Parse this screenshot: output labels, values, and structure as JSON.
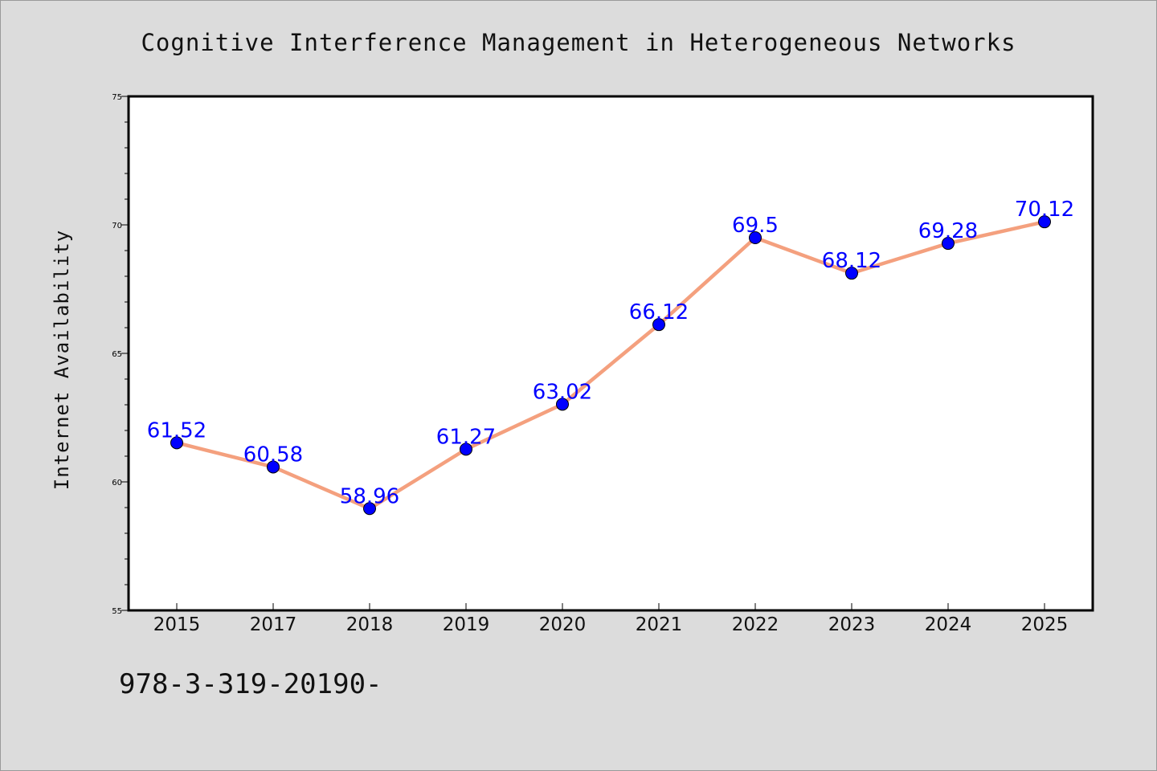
{
  "page": {
    "title": "Cognitive Interference Management in Heterogeneous Networks",
    "footer_text": "978-3-319-20190-"
  },
  "colors": {
    "background": "#dcdcdc",
    "plot_background": "#ffffff",
    "line": "#f4a07e",
    "marker": "#0000ff",
    "label": "#0000ff"
  },
  "chart_data": {
    "type": "line",
    "title": "Cognitive Interference Management in Heterogeneous Networks",
    "xlabel": "",
    "ylabel": "Internet Availability",
    "categories": [
      "2015",
      "2017",
      "2018",
      "2019",
      "2020",
      "2021",
      "2022",
      "2023",
      "2024",
      "2025"
    ],
    "series": [
      {
        "values": [
          61.52,
          60.58,
          58.96,
          61.27,
          63.02,
          66.12,
          69.5,
          68.12,
          69.28,
          70.12
        ],
        "labels": [
          "61.52",
          "60.58",
          "58.96",
          "61.27",
          "63.02",
          "66.12",
          "69.5",
          "68.12",
          "69.28",
          "70.12"
        ]
      }
    ],
    "ylim": [
      55,
      75
    ],
    "yticks": [
      55,
      60,
      65,
      70,
      75
    ],
    "y_minor_step": 1,
    "grid": false,
    "legend": "none",
    "markers": true,
    "data_labels": true
  }
}
